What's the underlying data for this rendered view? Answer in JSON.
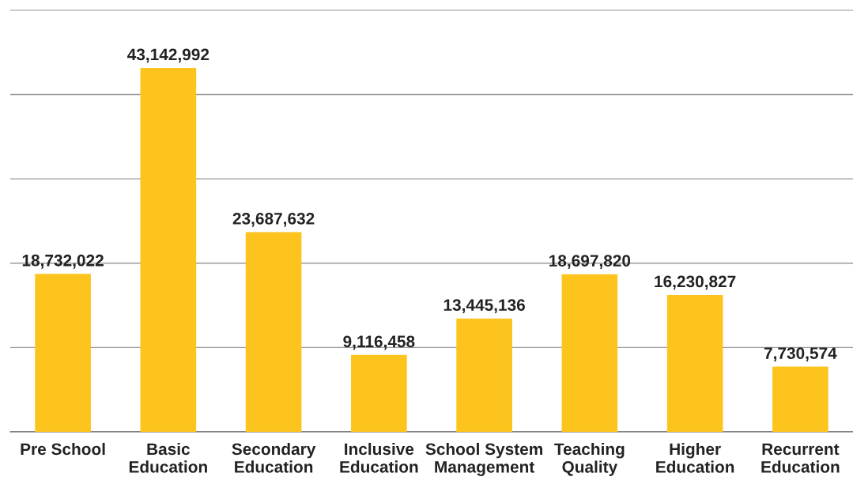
{
  "chart_data": {
    "type": "bar",
    "categories": [
      "Pre School",
      "Basic\nEducation",
      "Secondary\nEducation",
      "Inclusive\nEducation",
      "School System\nManagement",
      "Teaching\nQuality",
      "Higher\nEducation",
      "Recurrent\nEducation"
    ],
    "values": [
      18732022,
      43142992,
      23687632,
      9116458,
      13445136,
      18697820,
      16230827,
      7730574
    ],
    "color": "#fcc41c",
    "value_labels": [
      "18,732,022",
      "43,142,992",
      "23,687,632",
      "9,116,458",
      "13,445,136",
      "18,697,820",
      "16,230,827",
      "7,730,574"
    ],
    "grid": "y",
    "tick_labels": "x"
  }
}
